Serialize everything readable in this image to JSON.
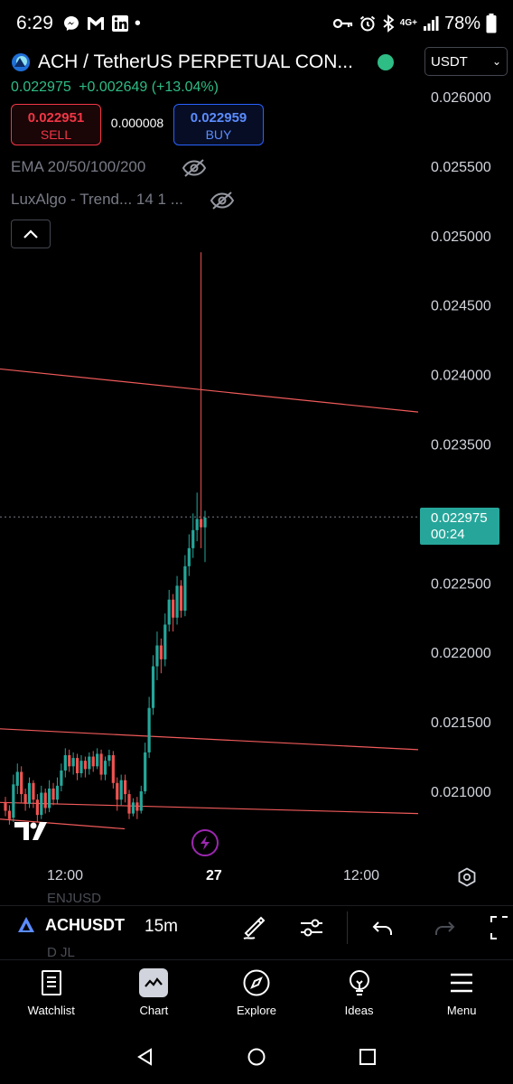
{
  "status_bar": {
    "time": "6:29",
    "dot": "•",
    "network": "4G+",
    "battery": "78%",
    "icons": [
      "messenger-icon",
      "gmail-icon",
      "linkedin-icon",
      "key-icon",
      "alarm-icon",
      "bluetooth-icon",
      "signal-icon",
      "battery-icon"
    ]
  },
  "header": {
    "symbol_title": "ACH / TetherUS PERPETUAL CON...",
    "last_price": "0.022975",
    "change": "+0.002649",
    "change_pct": "(+13.04%)",
    "market_status_color": "#2ebd85",
    "currency": "USDT"
  },
  "trade": {
    "sell_price": "0.022951",
    "sell_label": "SELL",
    "spread": "0.000008",
    "buy_price": "0.022959",
    "buy_label": "BUY"
  },
  "indicators": [
    {
      "label": "EMA 20/50/100/200"
    },
    {
      "label": "LuxAlgo - Trend... 14 1 ..."
    }
  ],
  "chart_data": {
    "type": "candlestick",
    "price_axis": [
      "0.026000",
      "0.025500",
      "0.025000",
      "0.024500",
      "0.024000",
      "0.023500",
      "0.022500",
      "0.022000",
      "0.021500",
      "0.021000"
    ],
    "ylim": [
      0.0208,
      0.0261
    ],
    "current_price_label": "0.022975",
    "countdown": "00:24",
    "time_axis": [
      "12:00",
      "27",
      "12:00"
    ],
    "up_color": "#26a69a",
    "down_color": "#ef5350",
    "trendline_color": "#f05a5a",
    "trendlines": [
      {
        "start": 0.02404,
        "end": 0.02373
      },
      {
        "start": 0.02145,
        "end": 0.0213
      },
      {
        "start": 0.02092,
        "end": 0.02084
      }
    ],
    "candles": [
      [
        0.02092,
        0.02086,
        0.02096,
        0.02082
      ],
      [
        0.02086,
        0.0208,
        0.0209,
        0.02076
      ],
      [
        0.02081,
        0.02105,
        0.02112,
        0.02078
      ],
      [
        0.02104,
        0.02114,
        0.0212,
        0.02098
      ],
      [
        0.02114,
        0.02098,
        0.02118,
        0.02092
      ],
      [
        0.02098,
        0.02091,
        0.02102,
        0.02086
      ],
      [
        0.02091,
        0.02106,
        0.0211,
        0.02088
      ],
      [
        0.02106,
        0.02094,
        0.02108,
        0.02088
      ],
      [
        0.02094,
        0.02083,
        0.02098,
        0.02078
      ],
      [
        0.02083,
        0.02099,
        0.02104,
        0.0208
      ],
      [
        0.02099,
        0.02088,
        0.02102,
        0.02084
      ],
      [
        0.02088,
        0.02102,
        0.02108,
        0.02085
      ],
      [
        0.02102,
        0.02094,
        0.02106,
        0.0209
      ],
      [
        0.02094,
        0.02104,
        0.0211,
        0.02091
      ],
      [
        0.02104,
        0.02115,
        0.0212,
        0.021
      ],
      [
        0.02115,
        0.02126,
        0.02131,
        0.0211
      ],
      [
        0.02126,
        0.02118,
        0.0213,
        0.02114
      ],
      [
        0.02118,
        0.02124,
        0.02128,
        0.02112
      ],
      [
        0.02124,
        0.02113,
        0.02127,
        0.02108
      ],
      [
        0.02113,
        0.02122,
        0.02126,
        0.0211
      ],
      [
        0.02122,
        0.02116,
        0.02125,
        0.0211
      ],
      [
        0.02116,
        0.02125,
        0.02128,
        0.02112
      ],
      [
        0.02125,
        0.02118,
        0.02129,
        0.02114
      ],
      [
        0.02118,
        0.02127,
        0.02131,
        0.02116
      ],
      [
        0.02127,
        0.02112,
        0.0213,
        0.02108
      ],
      [
        0.02112,
        0.02122,
        0.02125,
        0.02108
      ],
      [
        0.02122,
        0.02126,
        0.0213,
        0.02118
      ],
      [
        0.02126,
        0.02106,
        0.02129,
        0.02102
      ],
      [
        0.02106,
        0.02094,
        0.0211,
        0.02086
      ],
      [
        0.02094,
        0.02108,
        0.02112,
        0.0209
      ],
      [
        0.02108,
        0.02098,
        0.02112,
        0.02092
      ],
      [
        0.02098,
        0.02084,
        0.02101,
        0.0208
      ],
      [
        0.02084,
        0.02092,
        0.02095,
        0.02082
      ],
      [
        0.02092,
        0.02086,
        0.02096,
        0.0208
      ],
      [
        0.02086,
        0.021,
        0.02104,
        0.02084
      ],
      [
        0.021,
        0.02128,
        0.02135,
        0.02098
      ],
      [
        0.02128,
        0.0216,
        0.02168,
        0.02124
      ],
      [
        0.0216,
        0.0219,
        0.02198,
        0.02155
      ],
      [
        0.0219,
        0.02205,
        0.02215,
        0.0218
      ],
      [
        0.02205,
        0.02195,
        0.0221,
        0.02185
      ],
      [
        0.02195,
        0.0222,
        0.02228,
        0.0219
      ],
      [
        0.0222,
        0.02238,
        0.02245,
        0.02215
      ],
      [
        0.02238,
        0.02225,
        0.02242,
        0.02215
      ],
      [
        0.02225,
        0.02248,
        0.02255,
        0.0222
      ],
      [
        0.02248,
        0.0223,
        0.02252,
        0.02225
      ],
      [
        0.0223,
        0.02262,
        0.0227,
        0.02226
      ],
      [
        0.02262,
        0.02275,
        0.02285,
        0.02255
      ],
      [
        0.02275,
        0.02288,
        0.023,
        0.02268
      ],
      [
        0.02288,
        0.02296,
        0.02315,
        0.0228
      ],
      [
        0.02296,
        0.0229,
        0.02488,
        0.02275
      ],
      [
        0.0229,
        0.02297,
        0.02302,
        0.02265
      ]
    ]
  },
  "ghost_text": {
    "top": "ENJUSD",
    "bottom": "D JL"
  },
  "toolbar": {
    "symbol": "ACHUSDT",
    "interval": "15m",
    "icons": [
      "draw-icon",
      "indicator-settings-icon",
      "undo-icon",
      "redo-icon",
      "fullscreen-icon"
    ]
  },
  "bottom_nav": [
    {
      "label": "Watchlist",
      "icon": "watchlist-icon"
    },
    {
      "label": "Chart",
      "icon": "chart-icon"
    },
    {
      "label": "Explore",
      "icon": "explore-icon"
    },
    {
      "label": "Ideas",
      "icon": "ideas-icon"
    },
    {
      "label": "Menu",
      "icon": "menu-icon"
    }
  ]
}
